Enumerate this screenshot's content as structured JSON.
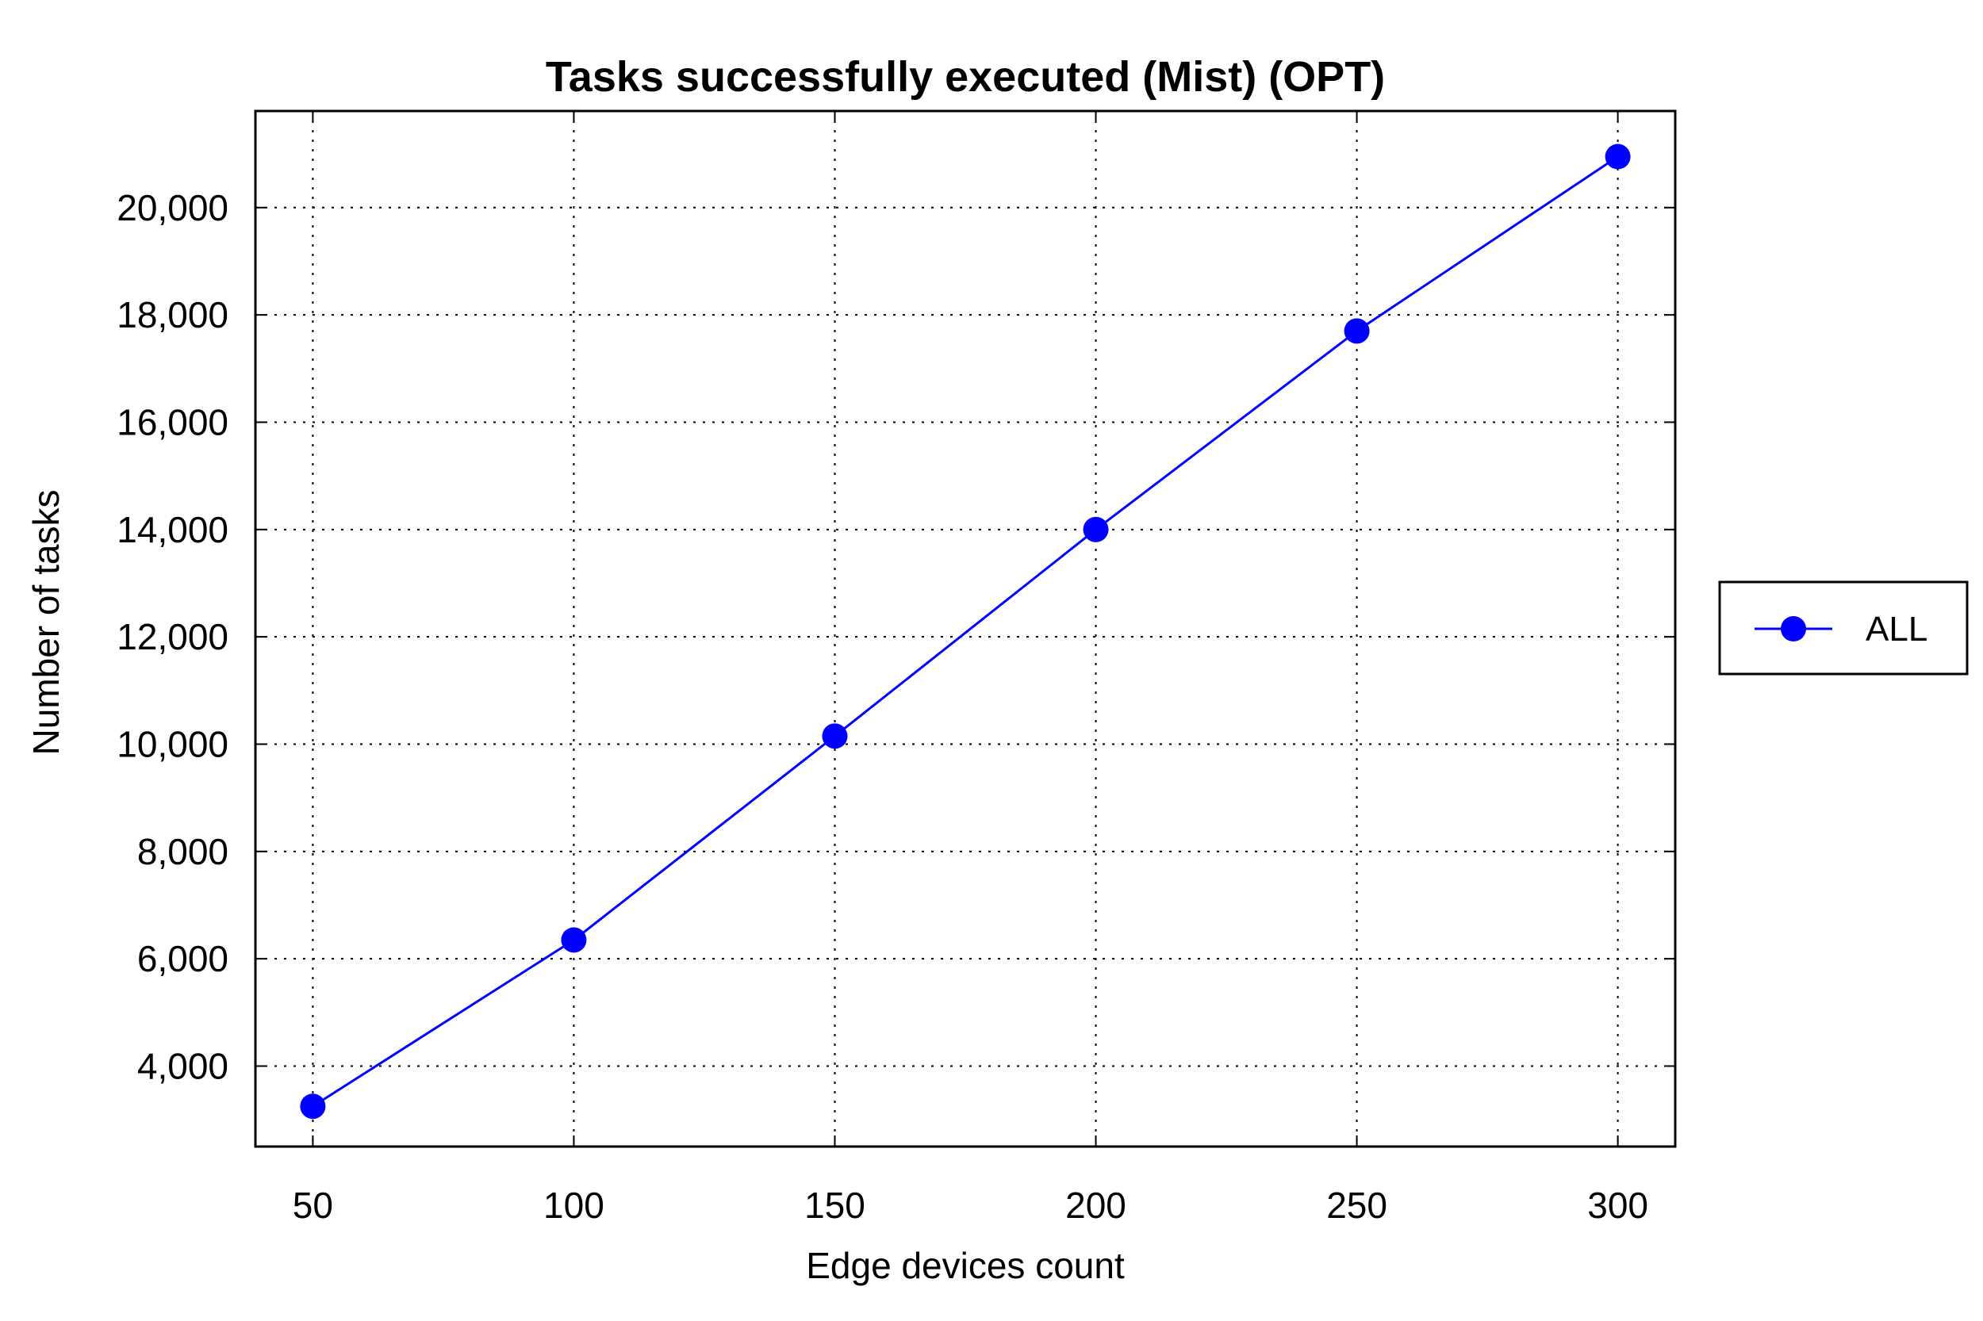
{
  "chart_data": {
    "type": "line",
    "title": "Tasks successfully executed (Mist) (OPT)",
    "xlabel": "Edge devices count",
    "ylabel": "Number of tasks",
    "x": [
      50,
      100,
      150,
      200,
      250,
      300
    ],
    "x_ticks": [
      "50",
      "100",
      "150",
      "200",
      "250",
      "300"
    ],
    "xlim": [
      39,
      311
    ],
    "ylim": [
      2500,
      21800
    ],
    "y_ticks": [
      4000,
      6000,
      8000,
      10000,
      12000,
      14000,
      16000,
      18000,
      20000
    ],
    "y_tick_labels": [
      "4,000",
      "6,000",
      "8,000",
      "10,000",
      "12,000",
      "14,000",
      "16,000",
      "18,000",
      "20,000"
    ],
    "series": [
      {
        "name": "ALL",
        "color": "#0000ff",
        "marker": "circle",
        "values": [
          3250,
          6350,
          10150,
          14000,
          17700,
          20950
        ]
      }
    ],
    "grid": true,
    "legend_position": "right"
  }
}
